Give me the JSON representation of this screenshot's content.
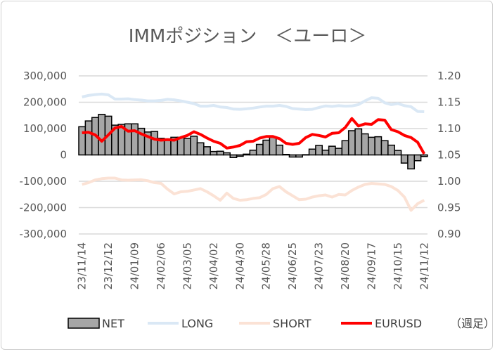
{
  "chart_data": {
    "type": "bar+line",
    "title": "IMMポジション　＜ユーロ＞",
    "x_unit_note": "（週足）",
    "categories_shown": [
      "23/11/14",
      "23/12/12",
      "24/01/09",
      "24/02/06",
      "24/03/05",
      "24/04/02",
      "24/04/30",
      "24/05/28",
      "24/06/25",
      "24/07/23",
      "24/08/20",
      "24/09/17",
      "24/10/15",
      "24/11/12"
    ],
    "label_every": 4,
    "y_left": {
      "min": -300000,
      "max": 300000,
      "step": 100000,
      "ticks": [
        "300,000",
        "200,000",
        "100,000",
        "0",
        "-100,000",
        "-200,000",
        "-300,000"
      ]
    },
    "y_right": {
      "min": 0.9,
      "max": 1.2,
      "step": 0.05,
      "ticks": [
        "1.20",
        "1.15",
        "1.10",
        "1.05",
        "1.00",
        "0.95",
        "0.90"
      ]
    },
    "grid": true,
    "legend_position": "bottom",
    "series": [
      {
        "name": "NET",
        "type": "bar",
        "axis": "left",
        "color": "#a6a6a6",
        "values_k": [
          107,
          129,
          142,
          154,
          147,
          113,
          116,
          118,
          118,
          101,
          87,
          89,
          63,
          61,
          67,
          67,
          63,
          71,
          46,
          31,
          13,
          14,
          8,
          -10,
          -5,
          3,
          18,
          40,
          56,
          67,
          37,
          2,
          -8,
          -8,
          1,
          22,
          36,
          18,
          33,
          25,
          54,
          92,
          99,
          80,
          67,
          69,
          54,
          37,
          17,
          -31,
          -53,
          -22,
          -6
        ]
      },
      {
        "name": "LONG",
        "type": "line",
        "axis": "left",
        "color": "#dae8f5",
        "values_k": [
          220,
          226,
          229,
          231,
          228,
          212,
          212,
          213,
          210,
          208,
          205,
          205,
          207,
          211,
          209,
          205,
          200,
          195,
          185,
          185,
          188,
          182,
          180,
          174,
          173,
          175,
          178,
          182,
          185,
          185,
          188,
          184,
          176,
          174,
          172,
          173,
          180,
          186,
          184,
          187,
          185,
          186,
          191,
          205,
          217,
          215,
          198,
          191,
          195,
          187,
          183,
          165,
          164
        ]
      },
      {
        "name": "SHORT",
        "type": "line",
        "axis": "left",
        "color": "#fbe2d5",
        "values_k": [
          -112,
          -105,
          -95,
          -90,
          -88,
          -88,
          -95,
          -96,
          -95,
          -94,
          -98,
          -105,
          -108,
          -130,
          -148,
          -140,
          -138,
          -133,
          -128,
          -140,
          -155,
          -172,
          -145,
          -165,
          -172,
          -170,
          -165,
          -162,
          -150,
          -128,
          -120,
          -140,
          -155,
          -170,
          -168,
          -160,
          -155,
          -152,
          -160,
          -150,
          -152,
          -135,
          -122,
          -112,
          -108,
          -110,
          -112,
          -120,
          -135,
          -160,
          -210,
          -185,
          -172
        ]
      },
      {
        "name": "EURUSD",
        "type": "line",
        "axis": "right",
        "color": "#ff0000",
        "values": [
          1.092,
          1.093,
          1.088,
          1.076,
          1.088,
          1.101,
          1.104,
          1.095,
          1.096,
          1.09,
          1.085,
          1.08,
          1.078,
          1.079,
          1.078,
          1.083,
          1.087,
          1.094,
          1.089,
          1.082,
          1.076,
          1.072,
          1.063,
          1.065,
          1.068,
          1.075,
          1.076,
          1.082,
          1.085,
          1.085,
          1.081,
          1.072,
          1.07,
          1.072,
          1.083,
          1.089,
          1.087,
          1.084,
          1.091,
          1.092,
          1.102,
          1.119,
          1.105,
          1.109,
          1.108,
          1.117,
          1.116,
          1.098,
          1.094,
          1.087,
          1.083,
          1.074,
          1.052
        ]
      }
    ]
  }
}
